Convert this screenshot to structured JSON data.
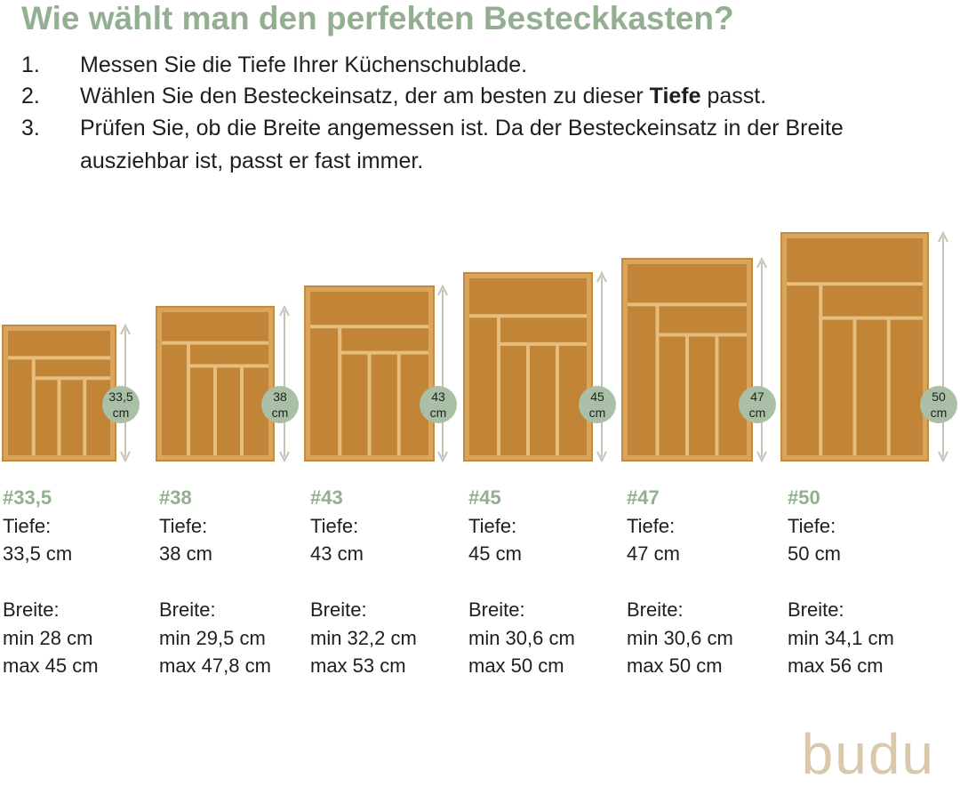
{
  "title": "Wie wählt man den perfekten Besteckkasten?",
  "steps": [
    {
      "number": "1.",
      "text": "Messen Sie die Tiefe Ihrer Küchenschublade."
    },
    {
      "number": "2.",
      "text": [
        "Wählen Sie den Besteckeinsatz, der am besten zu dieser ",
        "Tiefe",
        " passt."
      ]
    },
    {
      "number": "3.",
      "text": "Prüfen Sie, ob die Breite angemessen ist. Da der Besteckeinsatz in der Breite ausziehbar ist, passt er fast immer."
    }
  ],
  "products": [
    {
      "badge": [
        "33,5",
        "cm"
      ],
      "name": "#33,5",
      "depth_label": "Tiefe:",
      "depth": "33,5 cm",
      "width_label": "Breite:",
      "min": "min 28 cm",
      "max": "max 45 cm"
    },
    {
      "badge": [
        "38",
        "cm"
      ],
      "name": "#38",
      "depth_label": "Tiefe:",
      "depth": "38 cm",
      "width_label": "Breite:",
      "min": "min 29,5 cm",
      "max": "max 47,8 cm"
    },
    {
      "badge": [
        "43",
        "cm"
      ],
      "name": "#43",
      "depth_label": "Tiefe:",
      "depth": "43 cm",
      "width_label": "Breite:",
      "min": "min 32,2 cm",
      "max": "max 53 cm"
    },
    {
      "badge": [
        "45",
        "cm"
      ],
      "name": "#45",
      "depth_label": "Tiefe:",
      "depth": "45 cm",
      "width_label": "Breite:",
      "min": "min 30,6 cm",
      "max": "max 50 cm"
    },
    {
      "badge": [
        "47",
        "cm"
      ],
      "name": "#47",
      "depth_label": "Tiefe:",
      "depth": "47 cm",
      "width_label": "Breite:",
      "min": "min 30,6 cm",
      "max": "max 50 cm"
    },
    {
      "badge": [
        "50",
        "cm"
      ],
      "name": "#50",
      "depth_label": "Tiefe:",
      "depth": "50 cm",
      "width_label": "Breite:",
      "min": "min 34,1 cm",
      "max": "max 56 cm"
    }
  ],
  "logo": "budu"
}
